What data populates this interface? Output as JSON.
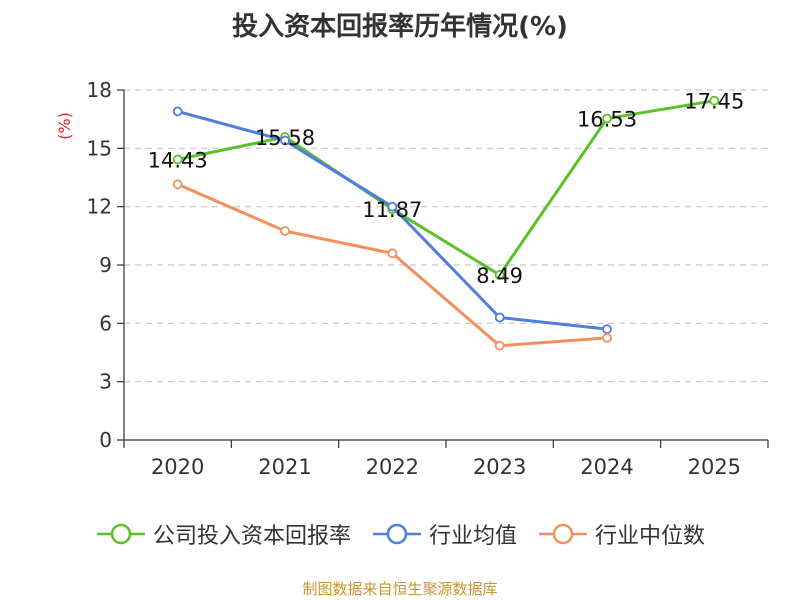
{
  "chart_data": {
    "type": "line",
    "title": "投入资本回报率历年情况(%)",
    "ylabel": "(%)",
    "xlabel": "",
    "ylim": [
      0,
      18
    ],
    "yticks": [
      0,
      3,
      6,
      9,
      12,
      15,
      18
    ],
    "categories": [
      "2020",
      "2021",
      "2022",
      "2023",
      "2024",
      "2025"
    ],
    "grid": "horizontal-dashed",
    "legend_position": "bottom",
    "series": [
      {
        "name": "公司投入资本回报率",
        "color": "#5cc02b",
        "values": [
          14.43,
          15.58,
          11.87,
          8.49,
          16.53,
          17.45
        ],
        "show_labels": true
      },
      {
        "name": "行业均值",
        "color": "#4e7fdc",
        "values": [
          16.9,
          15.4,
          12.0,
          6.3,
          5.7,
          null
        ],
        "show_labels": false
      },
      {
        "name": "行业中位数",
        "color": "#f58f5c",
        "values": [
          13.15,
          10.75,
          9.6,
          4.85,
          5.25,
          null
        ],
        "show_labels": false
      }
    ]
  },
  "source_note": "制图数据来自恒生聚源数据库"
}
